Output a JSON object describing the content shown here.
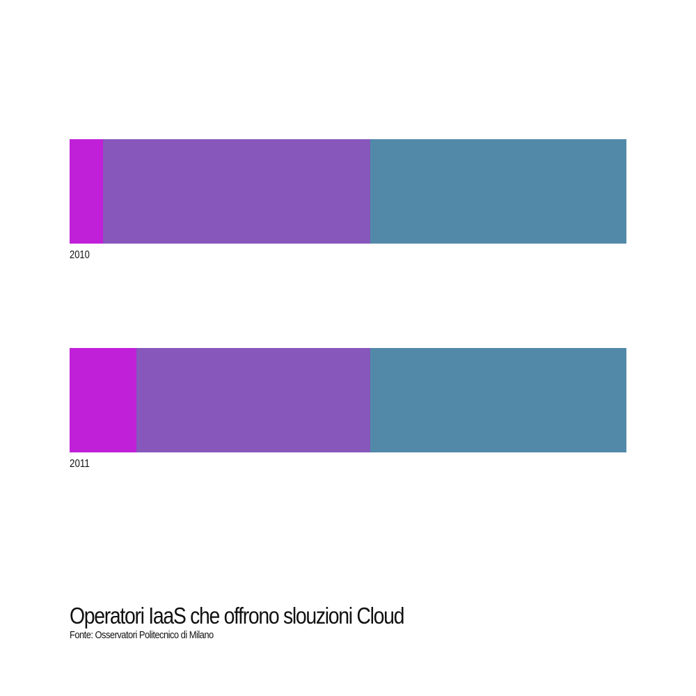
{
  "chart_data": {
    "type": "bar",
    "orientation": "horizontal",
    "stacked": true,
    "normalized": true,
    "categories": [
      "2010",
      "2011"
    ],
    "series": [
      {
        "values": [
          6,
          12
        ],
        "color": "#c020d8"
      },
      {
        "values": [
          48,
          42
        ],
        "color": "#8757bc"
      },
      {
        "values": [
          46,
          46
        ],
        "color": "#5289a8"
      }
    ],
    "xlim": [
      0,
      100
    ],
    "grid": false,
    "legend": "none"
  },
  "title": "Operatori IaaS che offrono slouzioni Cloud",
  "source": "Fonte: Osservatori Politecnico di Milano"
}
